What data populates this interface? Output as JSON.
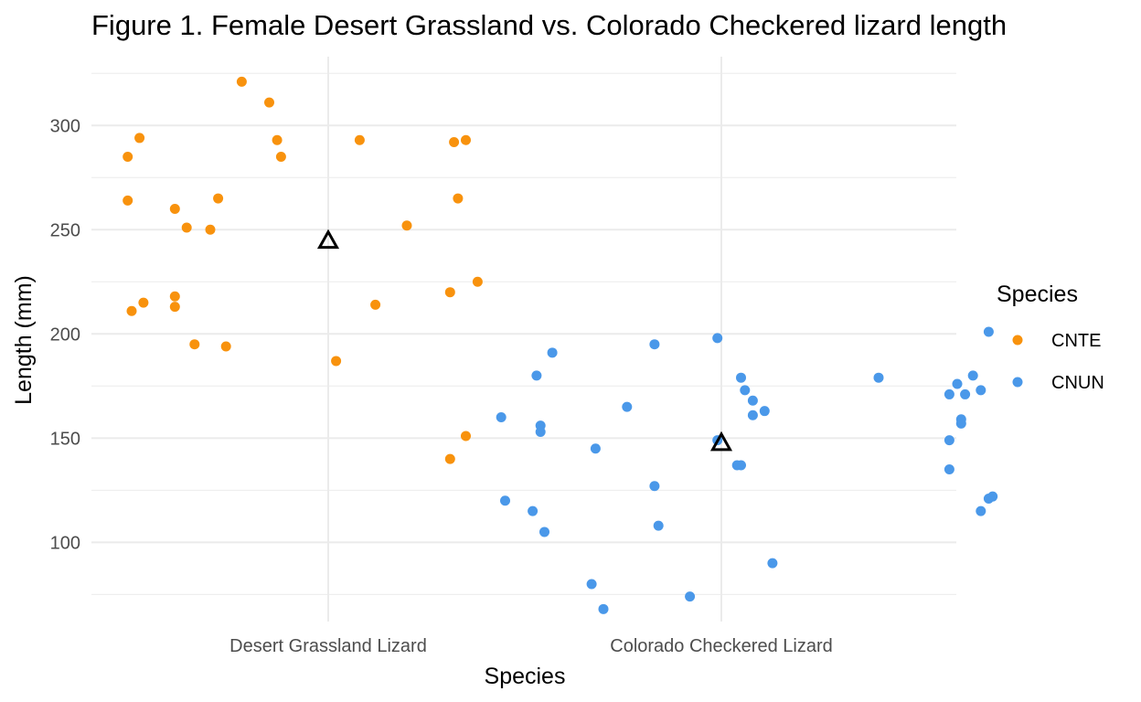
{
  "chart_data": {
    "type": "scatter",
    "title": "Figure 1. Female Desert Grassland  vs. Colorado Checkered lizard length",
    "xlabel": "Species",
    "ylabel": "Length (mm)",
    "categories": [
      "Desert Grassland Lizard",
      "Colorado Checkered Lizard"
    ],
    "yticks": [
      100,
      150,
      200,
      250,
      300
    ],
    "ylim": [
      62,
      333
    ],
    "grid": true,
    "legend": {
      "title": "Species",
      "position": "right",
      "entries": [
        {
          "label": "CNTE",
          "color": "#F8920D"
        },
        {
          "label": "CNUN",
          "color": "#4A98E9"
        }
      ]
    },
    "series": [
      {
        "name": "CNTE",
        "color": "#F8920D",
        "category": "Desert Grassland Lizard",
        "points": [
          {
            "x": 0.78,
            "y": 321
          },
          {
            "x": 0.85,
            "y": 311
          },
          {
            "x": 0.52,
            "y": 294
          },
          {
            "x": 0.87,
            "y": 293
          },
          {
            "x": 1.08,
            "y": 293
          },
          {
            "x": 1.32,
            "y": 292
          },
          {
            "x": 1.35,
            "y": 293
          },
          {
            "x": 0.49,
            "y": 285
          },
          {
            "x": 0.88,
            "y": 285
          },
          {
            "x": 0.49,
            "y": 264
          },
          {
            "x": 0.72,
            "y": 265
          },
          {
            "x": 1.33,
            "y": 265
          },
          {
            "x": 0.61,
            "y": 260
          },
          {
            "x": 0.64,
            "y": 251
          },
          {
            "x": 0.7,
            "y": 250
          },
          {
            "x": 1.2,
            "y": 252
          },
          {
            "x": 1.38,
            "y": 225
          },
          {
            "x": 1.31,
            "y": 220
          },
          {
            "x": 0.61,
            "y": 218
          },
          {
            "x": 0.53,
            "y": 215
          },
          {
            "x": 1.12,
            "y": 214
          },
          {
            "x": 0.61,
            "y": 213
          },
          {
            "x": 0.5,
            "y": 211
          },
          {
            "x": 0.66,
            "y": 195
          },
          {
            "x": 0.74,
            "y": 194
          },
          {
            "x": 1.02,
            "y": 187
          },
          {
            "x": 1.35,
            "y": 151
          },
          {
            "x": 1.31,
            "y": 140
          }
        ],
        "mean": 245
      },
      {
        "name": "CNUN",
        "color": "#4A98E9",
        "category": "Colorado Checkered Lizard",
        "points": [
          {
            "x": 2.68,
            "y": 201
          },
          {
            "x": 1.99,
            "y": 198
          },
          {
            "x": 1.83,
            "y": 195
          },
          {
            "x": 1.57,
            "y": 191
          },
          {
            "x": 1.53,
            "y": 180
          },
          {
            "x": 2.64,
            "y": 180
          },
          {
            "x": 2.05,
            "y": 179
          },
          {
            "x": 2.4,
            "y": 179
          },
          {
            "x": 2.6,
            "y": 176
          },
          {
            "x": 2.06,
            "y": 173
          },
          {
            "x": 2.66,
            "y": 173
          },
          {
            "x": 2.58,
            "y": 171
          },
          {
            "x": 2.62,
            "y": 171
          },
          {
            "x": 2.08,
            "y": 168
          },
          {
            "x": 1.76,
            "y": 165
          },
          {
            "x": 2.11,
            "y": 163
          },
          {
            "x": 2.08,
            "y": 161
          },
          {
            "x": 1.44,
            "y": 160
          },
          {
            "x": 2.61,
            "y": 159
          },
          {
            "x": 2.61,
            "y": 157
          },
          {
            "x": 1.54,
            "y": 156
          },
          {
            "x": 1.54,
            "y": 153
          },
          {
            "x": 2.58,
            "y": 149
          },
          {
            "x": 1.99,
            "y": 149
          },
          {
            "x": 1.68,
            "y": 145
          },
          {
            "x": 2.04,
            "y": 137
          },
          {
            "x": 2.05,
            "y": 137
          },
          {
            "x": 2.58,
            "y": 135
          },
          {
            "x": 1.83,
            "y": 127
          },
          {
            "x": 2.69,
            "y": 122
          },
          {
            "x": 2.68,
            "y": 121
          },
          {
            "x": 1.45,
            "y": 120
          },
          {
            "x": 1.52,
            "y": 115
          },
          {
            "x": 2.66,
            "y": 115
          },
          {
            "x": 1.84,
            "y": 108
          },
          {
            "x": 1.55,
            "y": 105
          },
          {
            "x": 2.13,
            "y": 90
          },
          {
            "x": 1.67,
            "y": 80
          },
          {
            "x": 1.92,
            "y": 74
          },
          {
            "x": 1.7,
            "y": 68
          }
        ],
        "mean": 148
      }
    ]
  }
}
